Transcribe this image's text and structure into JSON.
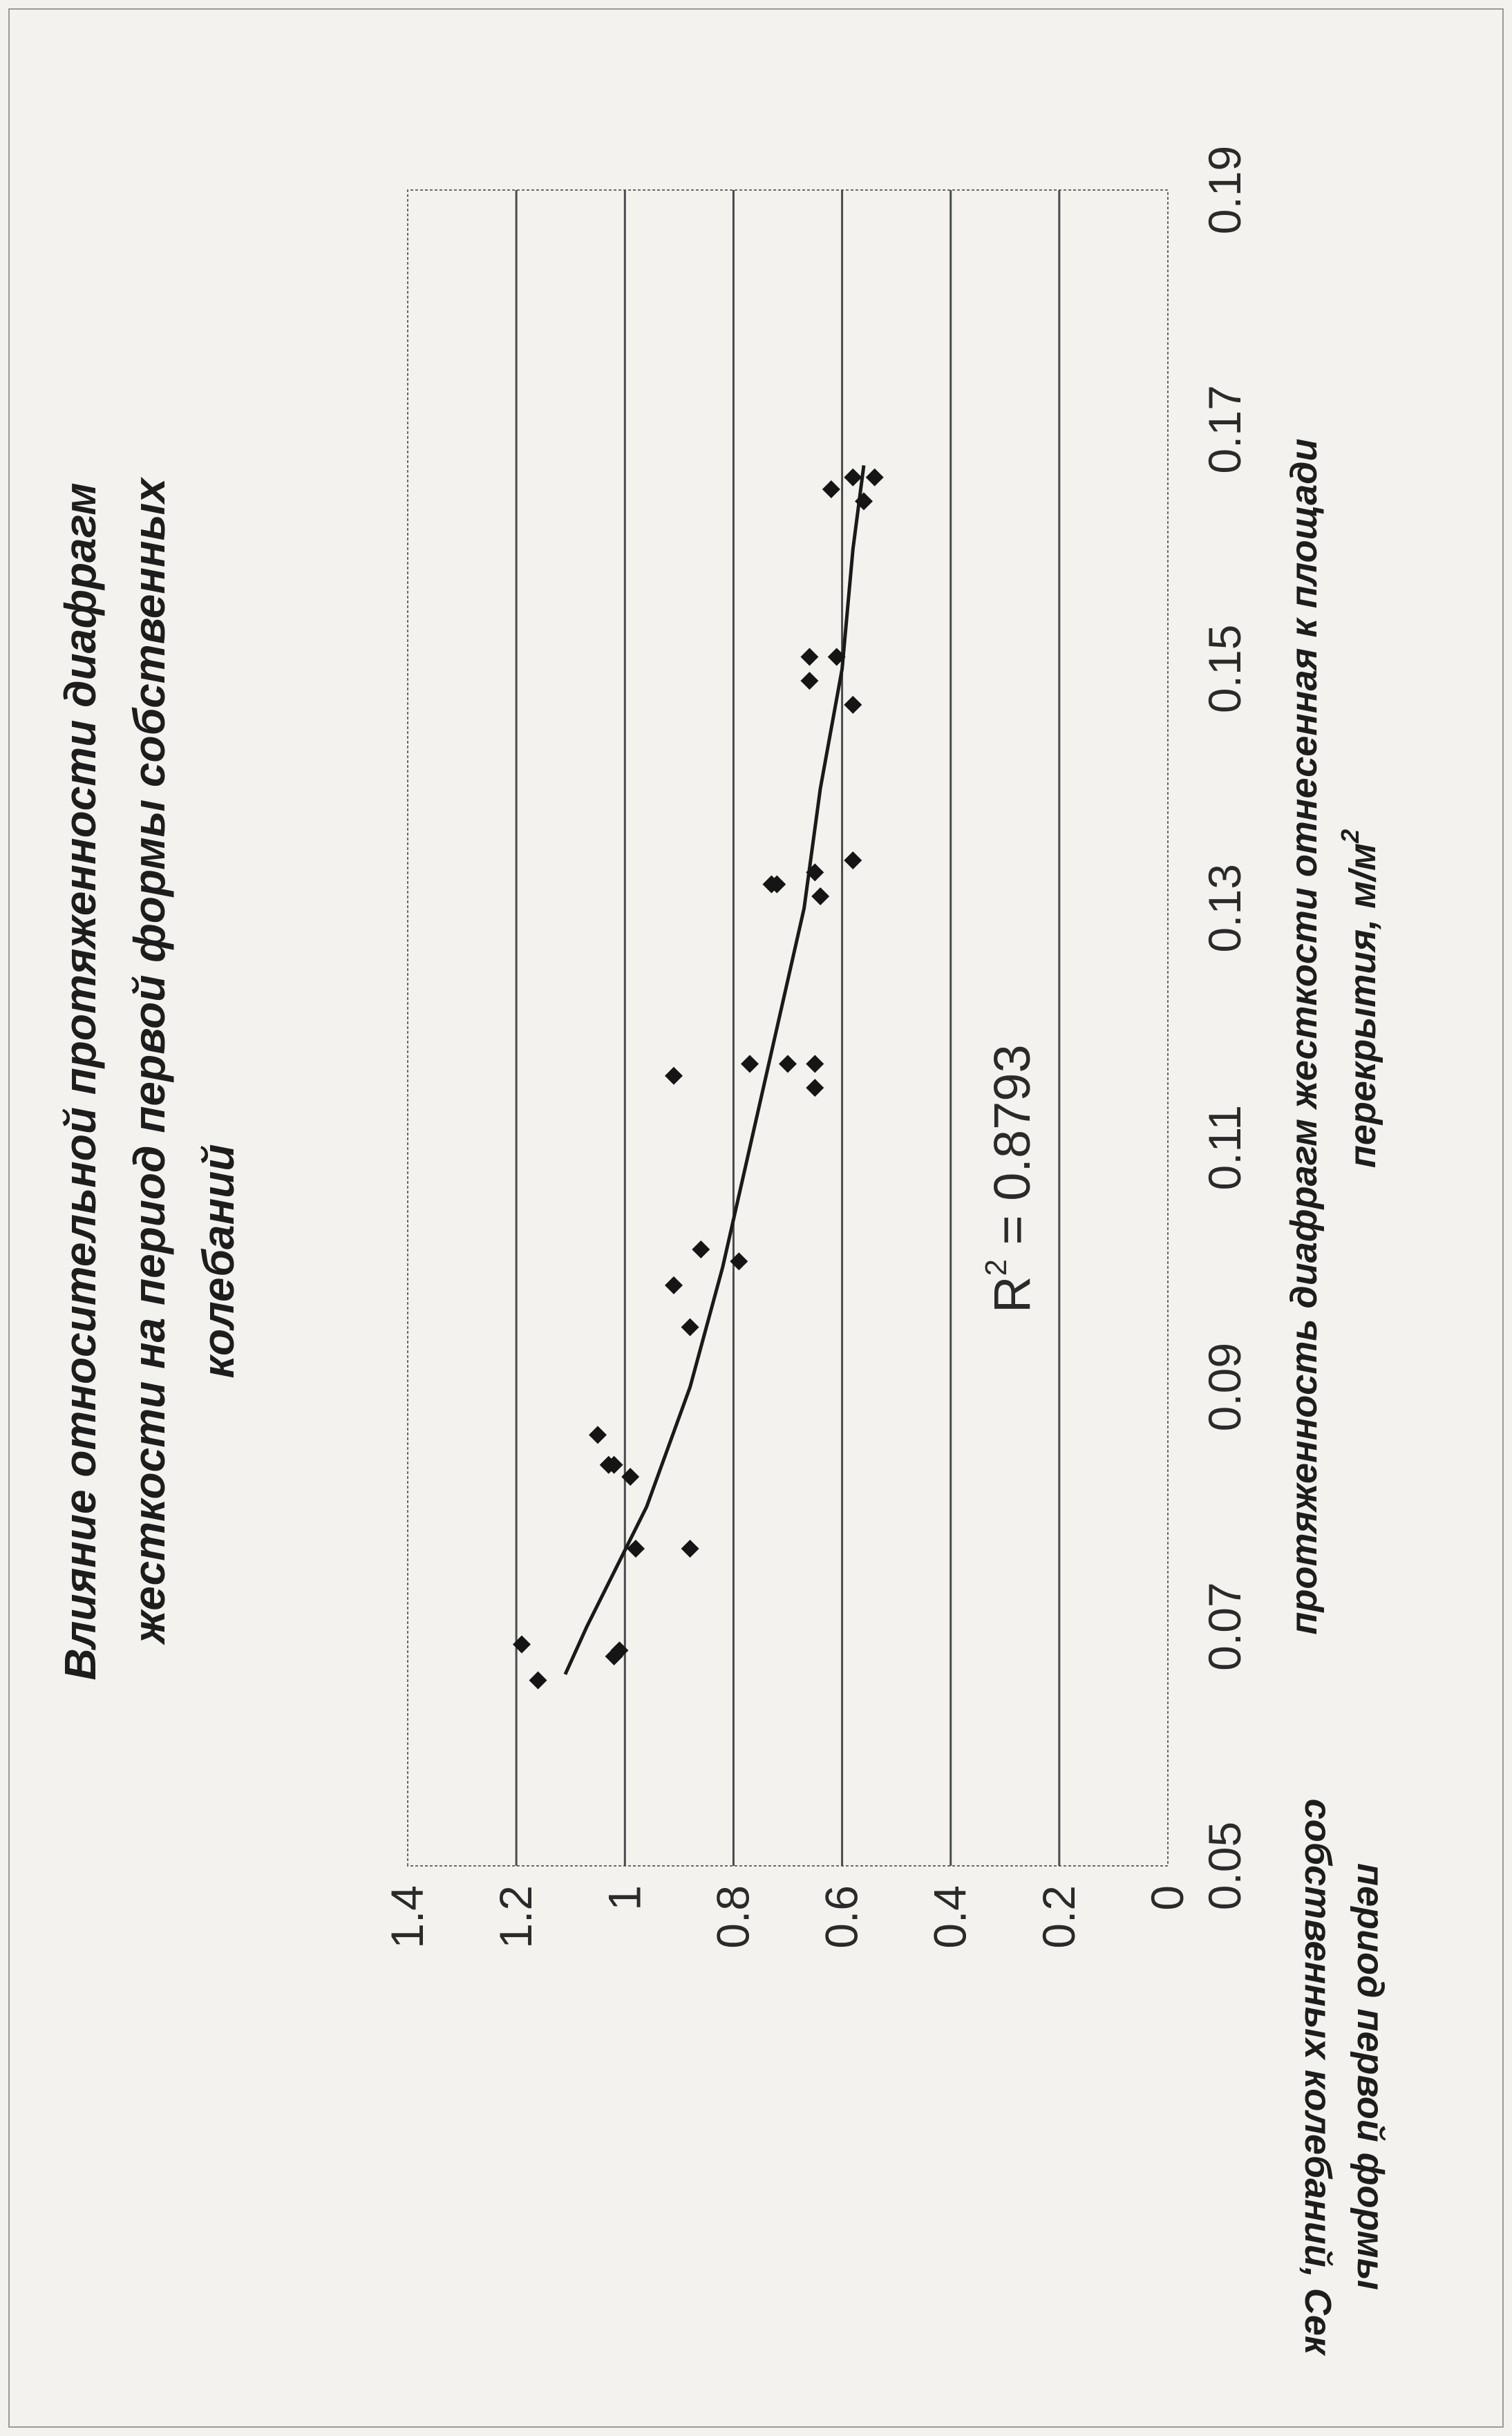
{
  "chart_data": {
    "type": "scatter",
    "orientation": "rotated-90-ccw",
    "title_lines": [
      "Влияние относительной протяженности диафрагм",
      "жесткости на период первой формы собственных",
      "колебаний"
    ],
    "xlabel_lines": [
      "протяженность диафрагм жесткости отнесенная к площади",
      "перекрытия, м/м"
    ],
    "xlabel_superscript": "2",
    "ylabel_lines": [
      "период первой формы",
      "собственных колебаний, Сек"
    ],
    "x_ticks": [
      "0.05",
      "0.07",
      "0.09",
      "0.11",
      "0.13",
      "0.15",
      "0.17",
      "0.19"
    ],
    "y_ticks": [
      "0",
      "0.2",
      "0.4",
      "0.6",
      "0.8",
      "1",
      "1.2",
      "1.4"
    ],
    "xlim": [
      0.05,
      0.19
    ],
    "ylim": [
      0,
      1.4
    ],
    "grid": "horizontal",
    "annotation": {
      "base": "R",
      "sup": "2",
      "text": " = 0.8793"
    },
    "points": [
      {
        "x": 0.0685,
        "y": 1.19
      },
      {
        "x": 0.0655,
        "y": 1.16
      },
      {
        "x": 0.0675,
        "y": 1.02
      },
      {
        "x": 0.068,
        "y": 1.01
      },
      {
        "x": 0.0765,
        "y": 0.98
      },
      {
        "x": 0.0765,
        "y": 0.88
      },
      {
        "x": 0.0825,
        "y": 0.99
      },
      {
        "x": 0.0835,
        "y": 1.02
      },
      {
        "x": 0.0835,
        "y": 1.03
      },
      {
        "x": 0.086,
        "y": 1.05
      },
      {
        "x": 0.095,
        "y": 0.88
      },
      {
        "x": 0.0985,
        "y": 0.91
      },
      {
        "x": 0.1005,
        "y": 0.79
      },
      {
        "x": 0.1015,
        "y": 0.86
      },
      {
        "x": 0.116,
        "y": 0.91
      },
      {
        "x": 0.117,
        "y": 0.77
      },
      {
        "x": 0.117,
        "y": 0.7
      },
      {
        "x": 0.117,
        "y": 0.65
      },
      {
        "x": 0.115,
        "y": 0.65
      },
      {
        "x": 0.132,
        "y": 0.73
      },
      {
        "x": 0.132,
        "y": 0.72
      },
      {
        "x": 0.133,
        "y": 0.65
      },
      {
        "x": 0.131,
        "y": 0.64
      },
      {
        "x": 0.134,
        "y": 0.58
      },
      {
        "x": 0.149,
        "y": 0.66
      },
      {
        "x": 0.151,
        "y": 0.66
      },
      {
        "x": 0.151,
        "y": 0.61
      },
      {
        "x": 0.147,
        "y": 0.58
      },
      {
        "x": 0.165,
        "y": 0.62
      },
      {
        "x": 0.166,
        "y": 0.58
      },
      {
        "x": 0.164,
        "y": 0.56
      },
      {
        "x": 0.166,
        "y": 0.54
      }
    ],
    "trendline": [
      {
        "x": 0.066,
        "y": 1.11
      },
      {
        "x": 0.07,
        "y": 1.07
      },
      {
        "x": 0.08,
        "y": 0.96
      },
      {
        "x": 0.09,
        "y": 0.88
      },
      {
        "x": 0.1,
        "y": 0.82
      },
      {
        "x": 0.11,
        "y": 0.77
      },
      {
        "x": 0.12,
        "y": 0.72
      },
      {
        "x": 0.13,
        "y": 0.67
      },
      {
        "x": 0.14,
        "y": 0.64
      },
      {
        "x": 0.15,
        "y": 0.6
      },
      {
        "x": 0.16,
        "y": 0.58
      },
      {
        "x": 0.167,
        "y": 0.56
      }
    ]
  }
}
